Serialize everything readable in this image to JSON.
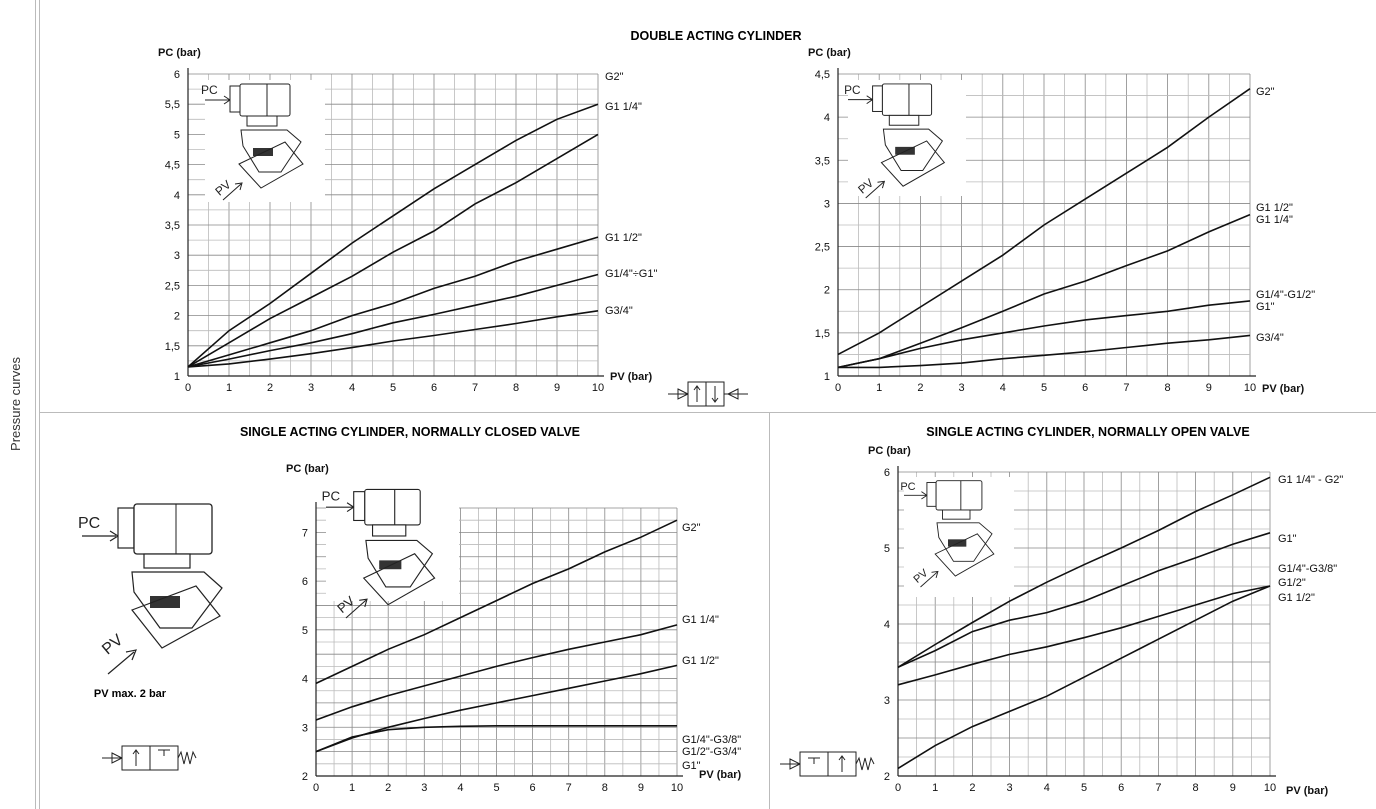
{
  "side_label": "Pressure curves",
  "section_titles": {
    "double_acting": "DOUBLE ACTING CYLINDER",
    "single_nc": "SINGLE ACTING CYLINDER, NORMALLY CLOSED VALVE",
    "single_no": "SINGLE ACTING CYLINDER, NORMALLY OPEN VALVE"
  },
  "note_pv_max": "PV max. 2 bar",
  "valve_labels": {
    "pc": "PC",
    "pv": "PV"
  },
  "chart_data": [
    {
      "type": "line",
      "ylabel": "PC (bar)",
      "xlabel": "PV (bar)",
      "xlim": [
        0,
        10
      ],
      "ylim": [
        1,
        6
      ],
      "xticks": [
        "0",
        "1",
        "2",
        "3",
        "4",
        "5",
        "6",
        "7",
        "8",
        "9",
        "10"
      ],
      "yticks": [
        "1",
        "1,5",
        "2",
        "2,5",
        "3",
        "3,5",
        "4",
        "4,5",
        "5",
        "5,5",
        "6"
      ],
      "x": [
        0,
        1,
        2,
        3,
        4,
        5,
        6,
        7,
        8,
        9,
        10
      ],
      "grid": true,
      "series": [
        {
          "name": "G2\"",
          "values": [
            1.15,
            1.75,
            2.2,
            2.7,
            3.2,
            3.65,
            4.1,
            4.5,
            4.9,
            5.25,
            5.5
          ]
        },
        {
          "name": "G1 1/4\"",
          "values": [
            1.15,
            1.55,
            1.95,
            2.3,
            2.65,
            3.05,
            3.4,
            3.85,
            4.2,
            4.6,
            5.0
          ]
        },
        {
          "name": "G1 1/2\"",
          "values": [
            1.15,
            1.35,
            1.55,
            1.75,
            2.0,
            2.2,
            2.45,
            2.65,
            2.9,
            3.1,
            3.3
          ]
        },
        {
          "name": "G1/4\"÷G1\"",
          "values": [
            1.15,
            1.28,
            1.42,
            1.55,
            1.7,
            1.88,
            2.02,
            2.17,
            2.32,
            2.5,
            2.68
          ]
        },
        {
          "name": "G3/4\"",
          "values": [
            1.15,
            1.2,
            1.28,
            1.37,
            1.47,
            1.58,
            1.67,
            1.77,
            1.87,
            1.98,
            2.08
          ]
        }
      ]
    },
    {
      "type": "line",
      "ylabel": "PC (bar)",
      "xlabel": "PV (bar)",
      "xlim": [
        0,
        10
      ],
      "ylim": [
        1,
        4.5
      ],
      "xticks": [
        "0",
        "1",
        "2",
        "3",
        "4",
        "5",
        "6",
        "7",
        "8",
        "9",
        "10"
      ],
      "yticks": [
        "1",
        "1,5",
        "2",
        "2,5",
        "3",
        "3,5",
        "4",
        "4,5"
      ],
      "x": [
        0,
        1,
        2,
        3,
        4,
        5,
        6,
        7,
        8,
        9,
        10
      ],
      "grid": true,
      "series": [
        {
          "name": "G2\"",
          "values": [
            1.25,
            1.5,
            1.8,
            2.1,
            2.4,
            2.75,
            3.05,
            3.35,
            3.65,
            4.0,
            4.33
          ]
        },
        {
          "name": "G1 1/2\" G1 1/4\"",
          "values": [
            1.1,
            1.2,
            1.38,
            1.56,
            1.75,
            1.95,
            2.1,
            2.28,
            2.45,
            2.67,
            2.87
          ]
        },
        {
          "name": "G1/4\"-G1/2\" G1\"",
          "values": [
            1.1,
            1.2,
            1.32,
            1.42,
            1.5,
            1.58,
            1.65,
            1.7,
            1.75,
            1.82,
            1.87
          ]
        },
        {
          "name": "G3/4\"",
          "values": [
            1.1,
            1.1,
            1.12,
            1.15,
            1.2,
            1.24,
            1.28,
            1.33,
            1.38,
            1.42,
            1.47
          ]
        }
      ]
    },
    {
      "type": "line",
      "ylabel": "PC (bar)",
      "xlabel": "PV (bar)",
      "xlim": [
        0,
        10
      ],
      "ylim": [
        2,
        7.5
      ],
      "xticks": [
        "0",
        "1",
        "2",
        "3",
        "4",
        "5",
        "6",
        "7",
        "8",
        "9",
        "10"
      ],
      "yticks": [
        "2",
        "3",
        "4",
        "5",
        "6",
        "7"
      ],
      "x": [
        0,
        1,
        2,
        3,
        4,
        5,
        6,
        7,
        8,
        9,
        10
      ],
      "grid": true,
      "series": [
        {
          "name": "G2\"",
          "values": [
            3.9,
            4.25,
            4.6,
            4.9,
            5.25,
            5.6,
            5.95,
            6.25,
            6.6,
            6.9,
            7.25
          ]
        },
        {
          "name": "G1 1/4\"",
          "values": [
            3.15,
            3.42,
            3.65,
            3.85,
            4.05,
            4.25,
            4.43,
            4.6,
            4.75,
            4.9,
            5.1
          ]
        },
        {
          "name": "G1 1/2\"",
          "values": [
            2.5,
            2.78,
            3.0,
            3.18,
            3.35,
            3.5,
            3.65,
            3.8,
            3.95,
            4.1,
            4.27
          ]
        },
        {
          "name": "G1/4\"-G3/8\" G1/2\"-G3/4\" G1\"",
          "values": [
            2.5,
            2.8,
            2.95,
            3.0,
            3.02,
            3.03,
            3.03,
            3.03,
            3.03,
            3.03,
            3.03
          ]
        }
      ]
    },
    {
      "type": "line",
      "ylabel": "PC (bar)",
      "xlabel": "PV (bar)",
      "xlim": [
        0,
        10
      ],
      "ylim": [
        2,
        6
      ],
      "xticks": [
        "0",
        "1",
        "2",
        "3",
        "4",
        "5",
        "6",
        "7",
        "8",
        "9",
        "10"
      ],
      "yticks": [
        "2",
        "3",
        "4",
        "5",
        "6"
      ],
      "x": [
        0,
        1,
        2,
        3,
        4,
        5,
        6,
        7,
        8,
        9,
        10
      ],
      "grid": true,
      "series": [
        {
          "name": "G1 1/4\" - G2\"",
          "values": [
            3.43,
            3.73,
            4.02,
            4.3,
            4.55,
            4.78,
            5.0,
            5.23,
            5.48,
            5.7,
            5.93
          ]
        },
        {
          "name": "G1\"",
          "values": [
            3.43,
            3.65,
            3.9,
            4.05,
            4.15,
            4.3,
            4.5,
            4.7,
            4.87,
            5.05,
            5.2
          ]
        },
        {
          "name": "G1/4\"-G3/8\" G1/2\"",
          "values": [
            3.2,
            3.33,
            3.47,
            3.6,
            3.7,
            3.82,
            3.95,
            4.1,
            4.25,
            4.4,
            4.5
          ]
        },
        {
          "name": "G1 1/2\"",
          "values": [
            2.1,
            2.4,
            2.65,
            2.85,
            3.05,
            3.3,
            3.55,
            3.8,
            4.05,
            4.3,
            4.5
          ]
        }
      ]
    }
  ]
}
